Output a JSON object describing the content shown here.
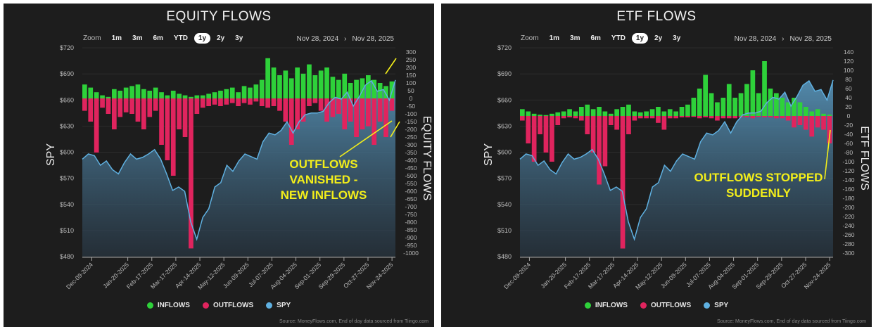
{
  "zoom_label": "Zoom",
  "zoom_buttons": [
    "1m",
    "3m",
    "6m",
    "YTD",
    "1y",
    "2y",
    "3y"
  ],
  "zoom_selected": "1y",
  "range_from": "Nov 28, 2024",
  "range_sep": "›",
  "range_to": "Nov 28, 2025",
  "legend": {
    "inflows": "INFLOWS",
    "outflows": "OUTFLOWS",
    "spy": "SPY"
  },
  "source": "Source: MoneyFlows.com, End of day data sourced from Tiingo.com",
  "colors": {
    "inflows": "#2ed13a",
    "outflows": "#e0245e",
    "spy": "#5fb0e0",
    "annotation": "#f3ee1a",
    "background": "#1d1d1d"
  },
  "chart_data": [
    {
      "type": "bar",
      "title": "EQUITY FLOWS",
      "ylabel": "SPY",
      "y2label": "EQUITY FLOWS",
      "annotation": [
        "OUTFLOWS",
        "VANISHED -",
        "NEW INFLOWS"
      ],
      "ylim": [
        480,
        720
      ],
      "yticks": [
        "$720",
        "$690",
        "$660",
        "$630",
        "$600",
        "$570",
        "$540",
        "$510",
        "$480"
      ],
      "y2lim": [
        -1000,
        300
      ],
      "y2ticks": [
        "300",
        "250",
        "200",
        "150",
        "100",
        "50",
        "0",
        "-50",
        "-100",
        "-150",
        "-200",
        "-250",
        "-300",
        "-350",
        "-400",
        "-450",
        "-500",
        "-550",
        "-600",
        "-650",
        "-700",
        "-750",
        "-800",
        "-850",
        "-900",
        "-950",
        "-1000"
      ],
      "xticks": [
        "Dec-09-2024",
        "Jan-20-2025",
        "Feb-17-2025",
        "Mar-17-2025",
        "Apr-14-2025",
        "May-12-2025",
        "Jun-09-2025",
        "Jul-07-2025",
        "Aug-04-2025",
        "Sep-01-2025",
        "Sep-29-2025",
        "Oct-27-2025",
        "Nov-24-2025"
      ],
      "inflows": [
        90,
        70,
        40,
        20,
        10,
        60,
        50,
        70,
        80,
        90,
        60,
        50,
        70,
        40,
        20,
        50,
        30,
        20,
        10,
        20,
        20,
        30,
        40,
        50,
        60,
        70,
        40,
        80,
        70,
        90,
        120,
        260,
        200,
        150,
        180,
        130,
        200,
        160,
        220,
        150,
        180,
        200,
        140,
        120,
        160,
        100,
        120,
        130,
        150,
        120,
        100,
        80,
        110
      ],
      "outflows": [
        -80,
        -150,
        -350,
        -60,
        -100,
        -200,
        -120,
        -90,
        -100,
        -150,
        -200,
        -120,
        -80,
        -300,
        -400,
        -500,
        -200,
        -250,
        -970,
        -100,
        -60,
        -50,
        -40,
        -50,
        -40,
        -30,
        -50,
        -30,
        -40,
        -20,
        -50,
        -60,
        -50,
        -80,
        -150,
        -300,
        -200,
        -150,
        -50,
        -30,
        -80,
        -150,
        -120,
        -100,
        -200,
        -150,
        -250,
        -200,
        -180,
        -300,
        -150,
        -250,
        -80
      ]
    },
    {
      "type": "bar",
      "title": "ETF FLOWS",
      "ylabel": "SPY",
      "y2label": "ETF FLOWS",
      "annotation": [
        "OUTFLOWS STOPPED",
        "SUDDENLY"
      ],
      "ylim": [
        480,
        720
      ],
      "yticks": [
        "$720",
        "$690",
        "$660",
        "$630",
        "$600",
        "$570",
        "$540",
        "$510",
        "$480"
      ],
      "y2lim": [
        -300,
        140
      ],
      "y2ticks": [
        "140",
        "120",
        "100",
        "80",
        "60",
        "40",
        "20",
        "0",
        "-20",
        "-40",
        "-60",
        "-80",
        "-100",
        "-120",
        "-140",
        "-160",
        "-180",
        "-200",
        "-220",
        "-240",
        "-260",
        "-280",
        "-300"
      ],
      "xticks": [
        "Dec-09-2024",
        "Jan-20-2025",
        "Feb-17-2025",
        "Mar-17-2025",
        "Apr-14-2025",
        "May-12-2025",
        "Jun-09-2025",
        "Jul-07-2025",
        "Aug-04-2025",
        "Sep-01-2025",
        "Sep-29-2025",
        "Oct-27-2025",
        "Nov-24-2025"
      ],
      "inflows": [
        15,
        10,
        5,
        3,
        2,
        5,
        8,
        10,
        15,
        10,
        20,
        25,
        15,
        20,
        10,
        5,
        15,
        20,
        25,
        10,
        8,
        10,
        15,
        20,
        10,
        15,
        10,
        20,
        25,
        40,
        60,
        90,
        50,
        30,
        40,
        70,
        40,
        50,
        70,
        100,
        50,
        120,
        60,
        50,
        40,
        30,
        40,
        30,
        20,
        10,
        15,
        5,
        3
      ],
      "outflows": [
        -10,
        -60,
        -100,
        -40,
        -80,
        -100,
        -20,
        -5,
        -3,
        -5,
        -10,
        -40,
        -80,
        -150,
        -110,
        -20,
        -30,
        -290,
        -40,
        -10,
        -5,
        -5,
        -5,
        -15,
        -30,
        -5,
        -5,
        -3,
        -3,
        -2,
        -5,
        -3,
        -5,
        -10,
        -5,
        -5,
        -5,
        -3,
        -3,
        -5,
        -2,
        -3,
        -3,
        -5,
        -5,
        -10,
        -25,
        -20,
        -30,
        -45,
        -25,
        -30,
        -60
      ]
    }
  ],
  "spy_weekly": [
    592,
    598,
    596,
    585,
    590,
    580,
    575,
    588,
    598,
    592,
    594,
    598,
    603,
    592,
    575,
    556,
    560,
    555,
    520,
    500,
    525,
    535,
    560,
    565,
    585,
    578,
    590,
    598,
    595,
    592,
    612,
    622,
    620,
    625,
    635,
    622,
    635,
    643,
    645,
    645,
    647,
    657,
    663,
    661,
    669,
    653,
    664,
    677,
    682,
    670,
    672,
    660,
    683
  ]
}
